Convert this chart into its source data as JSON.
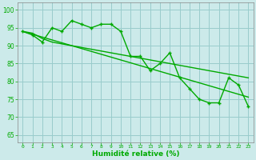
{
  "x": [
    0,
    1,
    2,
    3,
    4,
    5,
    6,
    7,
    8,
    9,
    10,
    11,
    12,
    13,
    14,
    15,
    16,
    17,
    18,
    19,
    20,
    21,
    22,
    23
  ],
  "line_main": [
    94,
    93,
    91,
    95,
    94,
    97,
    96,
    95,
    96,
    96,
    94,
    87,
    87,
    83,
    85,
    88,
    81,
    78,
    75,
    74,
    74,
    81,
    79,
    73
  ],
  "line_smooth1": [
    94.0,
    93.2,
    92.4,
    91.6,
    90.8,
    90.0,
    89.2,
    88.4,
    87.6,
    86.8,
    86.0,
    85.2,
    84.4,
    83.6,
    82.8,
    82.0,
    81.2,
    80.4,
    79.6,
    78.8,
    78.0,
    77.2,
    76.4,
    75.6
  ],
  "line_smooth2": [
    94.0,
    93.5,
    92.0,
    91.0,
    90.5,
    90.0,
    89.5,
    89.0,
    88.5,
    88.0,
    87.5,
    87.0,
    86.5,
    86.0,
    85.5,
    85.0,
    84.5,
    84.0,
    83.5,
    83.0,
    82.5,
    82.0,
    81.5,
    81.0
  ],
  "background": "#cceaea",
  "grid_color": "#99cccc",
  "line_color": "#00aa00",
  "ylabel_values": [
    65,
    70,
    75,
    80,
    85,
    90,
    95,
    100
  ],
  "xlabel": "Humidité relative (%)",
  "ylim": [
    63,
    102
  ],
  "xlim": [
    -0.5,
    23.5
  ]
}
